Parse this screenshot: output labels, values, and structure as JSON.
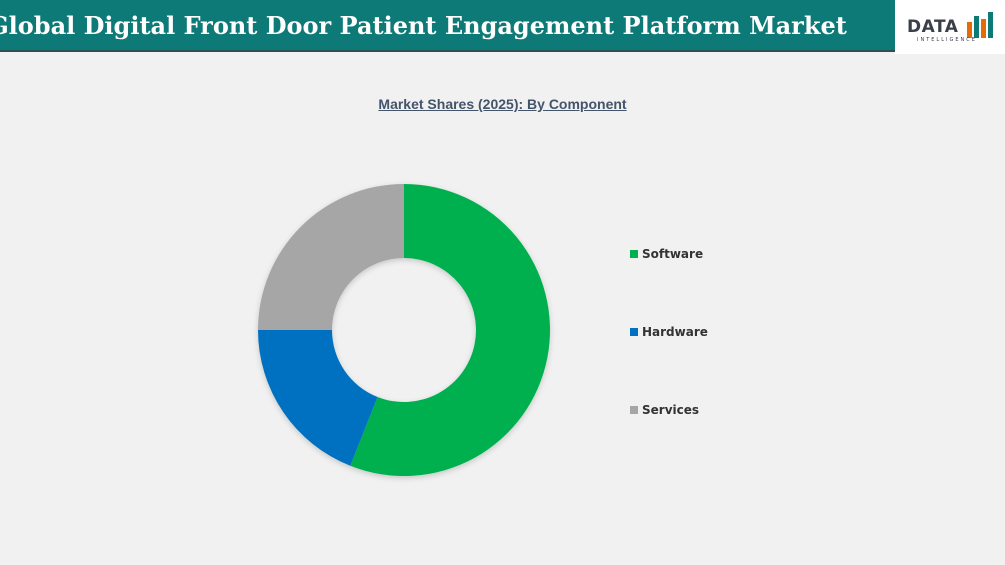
{
  "header": {
    "title": "Global Digital Front Door Patient Engagement Platform Market",
    "bg_color": "#0e7a77"
  },
  "logo": {
    "word": "DATA",
    "sub": "INTELLIGENCE"
  },
  "chart_data": {
    "type": "pie",
    "subtype": "donut",
    "title": "Market Shares (2025): By Component",
    "categories": [
      "Software",
      "Hardware",
      "Services"
    ],
    "values": [
      56,
      19,
      25
    ],
    "unit": "%",
    "colors": [
      "#00b050",
      "#0070c0",
      "#a6a6a6"
    ],
    "legend": "right"
  }
}
